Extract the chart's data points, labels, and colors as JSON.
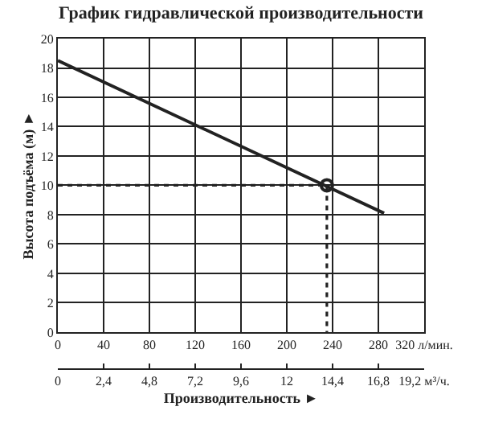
{
  "chart_data": {
    "type": "line",
    "title": "График гидравлической производительности",
    "xlabel": "Производительность ►",
    "ylabel": "Высота подъёма (м) ►",
    "xlim": [
      0,
      320
    ],
    "xticks": [
      0,
      40,
      80,
      120,
      160,
      200,
      240,
      280,
      {
        "value": 320,
        "label": "320 л/мин."
      }
    ],
    "x2lim": [
      0,
      19.2
    ],
    "x2ticks": [
      0,
      {
        "value": 2.4,
        "label": "2,4"
      },
      {
        "value": 4.8,
        "label": "4,8"
      },
      {
        "value": 7.2,
        "label": "7,2"
      },
      {
        "value": 9.6,
        "label": "9,6"
      },
      12,
      {
        "value": 14.4,
        "label": "14,4"
      },
      {
        "value": 16.8,
        "label": "16,8"
      },
      {
        "value": 19.2,
        "label": "19,2 м³/ч."
      }
    ],
    "ylim": [
      0,
      20
    ],
    "yticks": [
      0,
      2,
      4,
      6,
      8,
      10,
      12,
      14,
      16,
      18,
      20
    ],
    "grid": true,
    "series": [
      {
        "color": "#222222",
        "x": [
          0,
          285
        ],
        "values": [
          18.5,
          8.1
        ],
        "marker": "none",
        "line_style": "solid"
      },
      {
        "color": "#222222",
        "x": [
          0,
          235,
          235
        ],
        "values": [
          10,
          10,
          0
        ],
        "marker": "none",
        "line_style": "dotted"
      },
      {
        "type": "scatter",
        "color": "#222222",
        "x": [
          235
        ],
        "values": [
          10
        ],
        "marker": "circle"
      }
    ]
  }
}
